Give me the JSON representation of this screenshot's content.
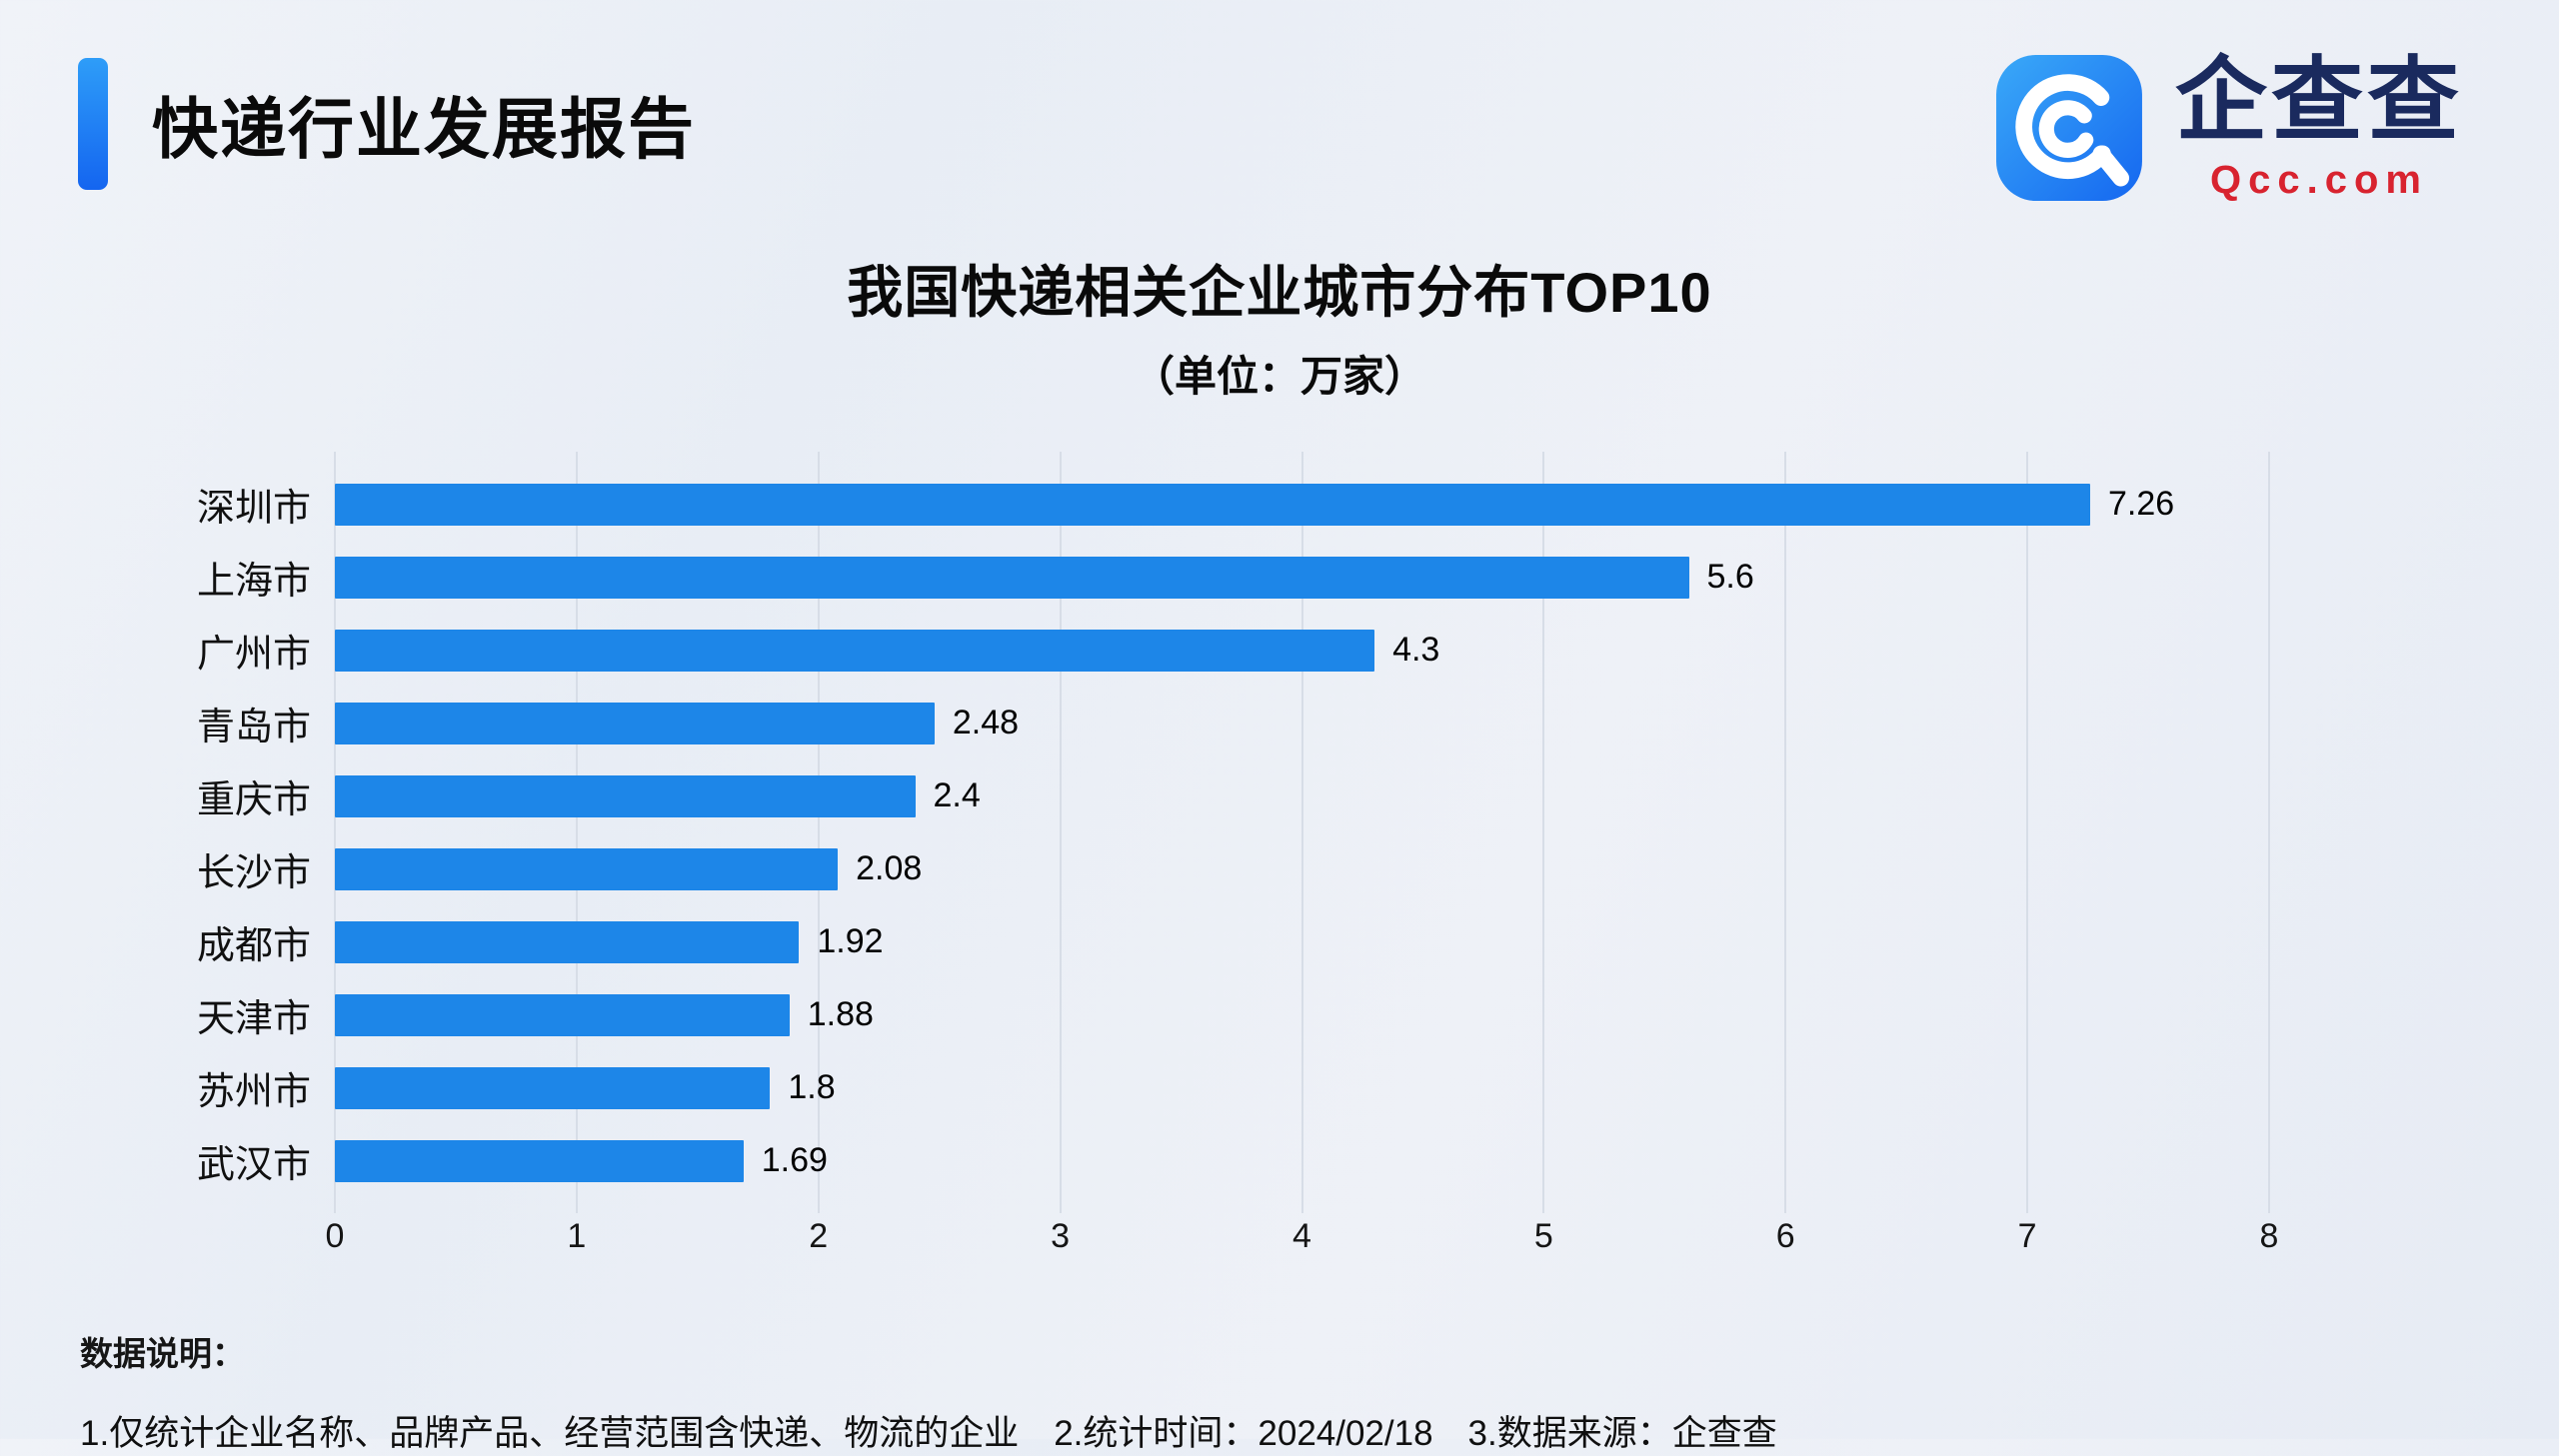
{
  "header": {
    "title": "快递行业发展报告"
  },
  "logo": {
    "name": "企查查",
    "domain": "Qcc.com"
  },
  "chart_data": {
    "type": "bar",
    "orientation": "horizontal",
    "title": "我国快递相关企业城市分布TOP10",
    "subtitle": "（单位：万家）",
    "categories": [
      "深圳市",
      "上海市",
      "广州市",
      "青岛市",
      "重庆市",
      "长沙市",
      "成都市",
      "天津市",
      "苏州市",
      "武汉市"
    ],
    "values": [
      7.26,
      5.6,
      4.3,
      2.48,
      2.4,
      2.08,
      1.92,
      1.88,
      1.8,
      1.69
    ],
    "xlim": [
      0,
      8
    ],
    "xticks": [
      0,
      1,
      2,
      3,
      4,
      5,
      6,
      7,
      8
    ],
    "bar_color": "#1d86e8",
    "grid": true,
    "legend": "none"
  },
  "footer": {
    "heading": "数据说明：",
    "notes": "1.仅统计企业名称、品牌产品、经营范围含快递、物流的企业　2.统计时间：2024/02/18　3.数据来源：企查查"
  },
  "colors": {
    "accent_blue": "#1d86e8",
    "logo_navy": "#1a2a5e",
    "logo_red": "#d8232f",
    "gridline": "#d7dde7",
    "background": "#ecf0f6"
  }
}
